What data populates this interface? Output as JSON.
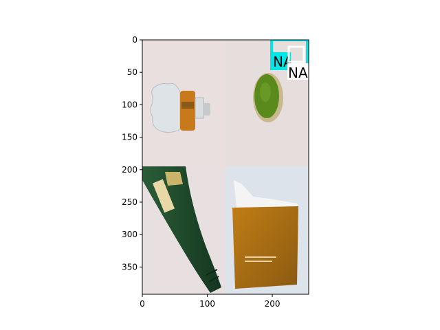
{
  "figure": {
    "x_ticks": [
      0,
      100,
      200
    ],
    "y_ticks": [
      0,
      50,
      100,
      150,
      200,
      250,
      300,
      350
    ],
    "x_range": [
      0,
      256
    ],
    "y_range": [
      0,
      392
    ]
  },
  "panels": [
    {
      "name": "plastic-bottle-photo",
      "subject": "crushed clear plastic bottle with orange label",
      "bg": "#e9dfdf"
    },
    {
      "name": "bottle-cap-photo",
      "subject": "green bottle cap",
      "bg": "#e6dddd"
    },
    {
      "name": "glass-bottle-photo",
      "subject": "green glass bottle",
      "bg": "#e8dfe0"
    },
    {
      "name": "paper-bag-photo",
      "subject": "orange-brown paper pouch",
      "bg": "#dde3ea"
    }
  ],
  "overlay_labels": [
    {
      "text": "NA",
      "bg": "#00e5e5",
      "fg": "#000000"
    },
    {
      "text": "NA",
      "bg": "#ffffff",
      "fg": "#000000"
    }
  ],
  "colors": {
    "axis": "#000000",
    "cyan_box": "#00e5e5",
    "bottle_green": "#1f4a2b",
    "cap_green": "#5a8a1c",
    "bag_orange": "#b07010"
  }
}
